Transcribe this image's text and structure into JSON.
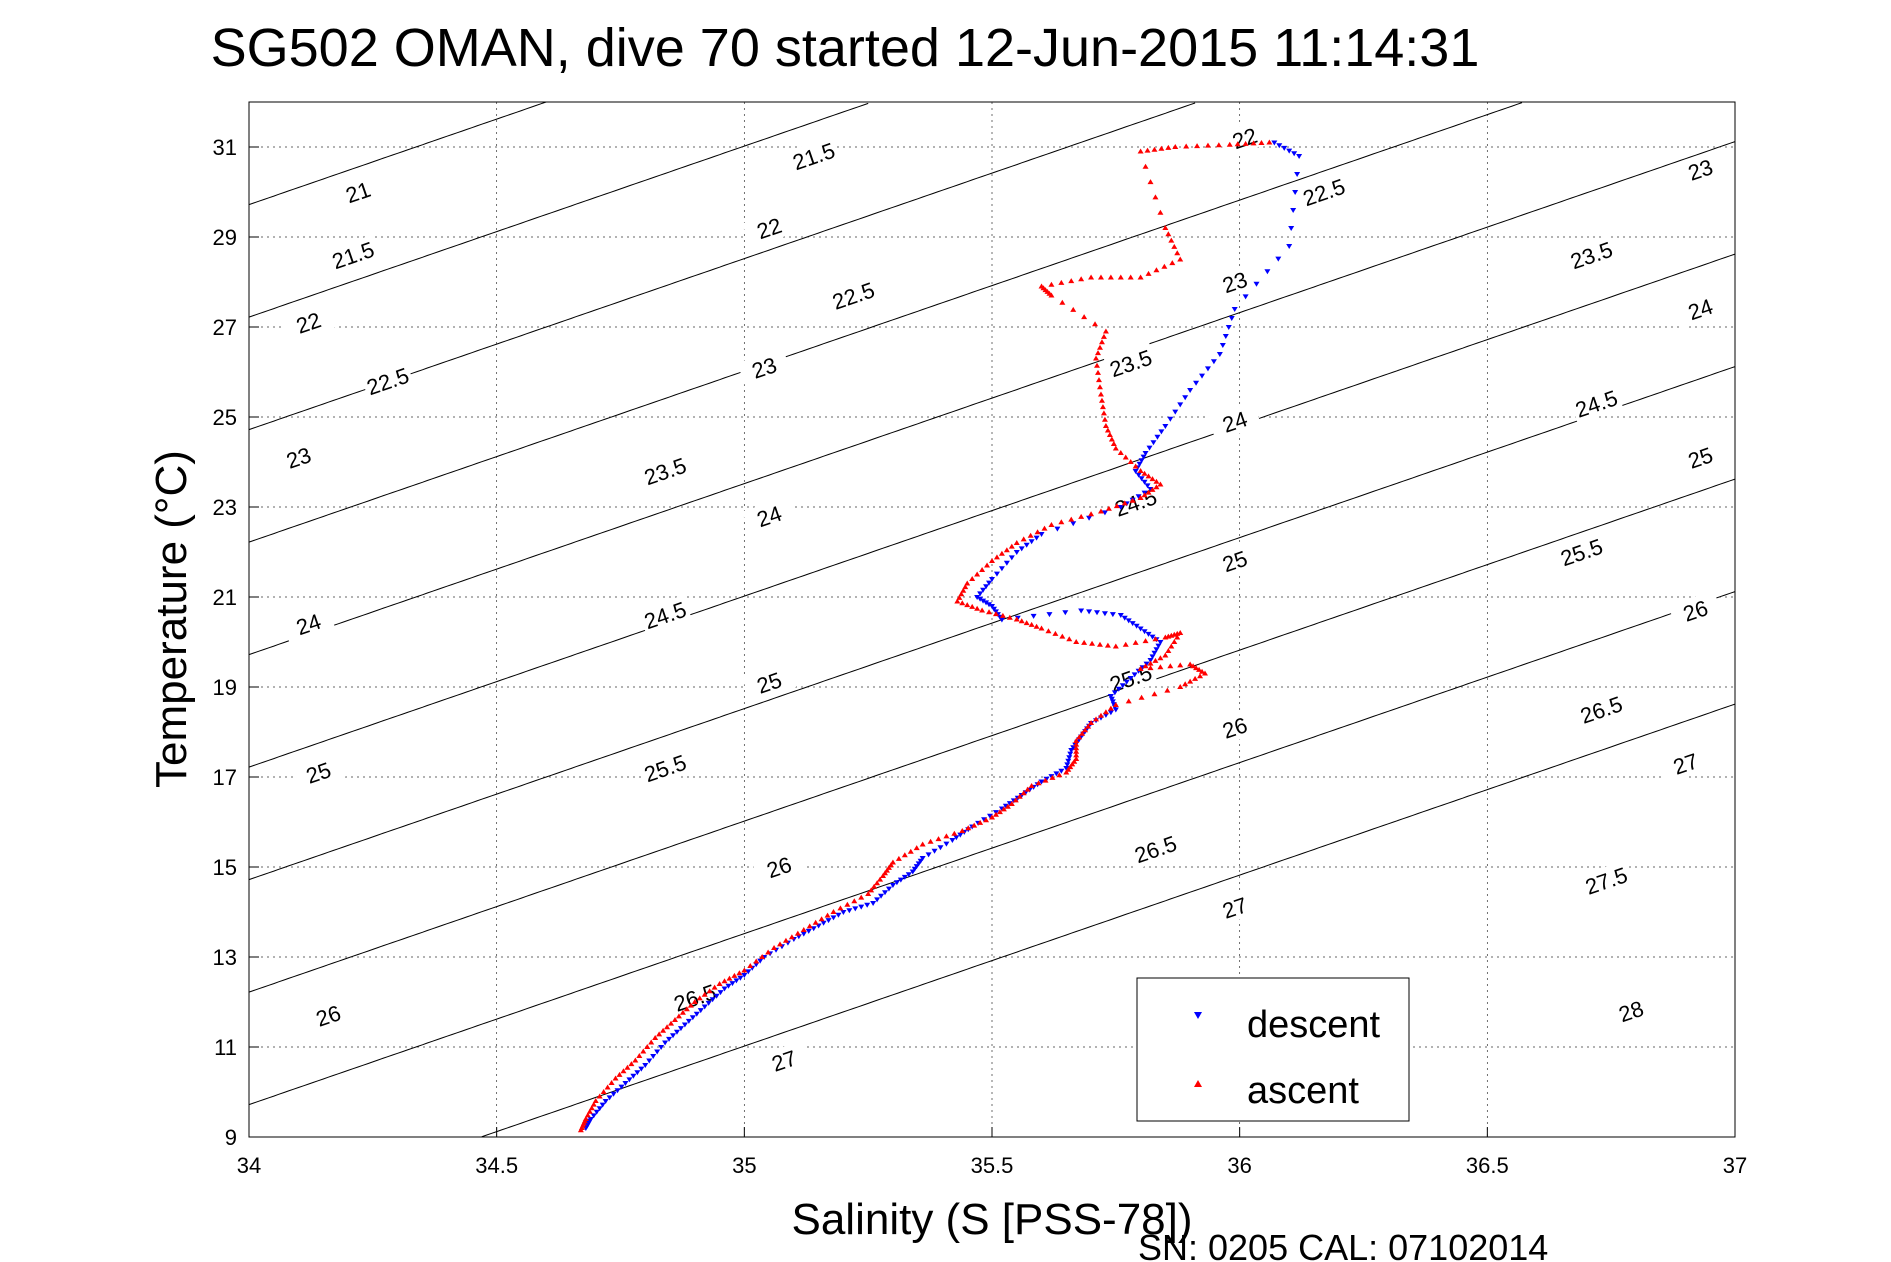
{
  "chart_data": {
    "type": "scatter",
    "title": "SG502 OMAN, dive 70 started 12-Jun-2015 11:14:31",
    "xlabel": "Salinity (S [PSS-78])",
    "ylabel": "Temperature (°C)",
    "xlim": [
      34,
      37
    ],
    "ylim": [
      9,
      32
    ],
    "xticks": [
      34,
      34.5,
      35,
      35.5,
      36,
      36.5,
      37
    ],
    "yticks": [
      9,
      11,
      13,
      15,
      17,
      19,
      21,
      23,
      25,
      27,
      29,
      31
    ],
    "grid": true,
    "legend_position": "bottom-right",
    "footer": "SN: 0205  CAL: 07102014",
    "contours": {
      "kind": "sigma-theta isopycnals",
      "levels": [
        21,
        21.5,
        22,
        22.5,
        23,
        23.5,
        24,
        24.5,
        25,
        25.5,
        26,
        26.5,
        27,
        27.5,
        28
      ]
    },
    "contour_labels": [
      {
        "text": "21",
        "s": 34.22,
        "t": 30.0
      },
      {
        "text": "21.5",
        "s": 34.21,
        "t": 28.6
      },
      {
        "text": "22",
        "s": 34.12,
        "t": 27.1
      },
      {
        "text": "22.5",
        "s": 34.28,
        "t": 25.8
      },
      {
        "text": "23",
        "s": 34.1,
        "t": 24.1
      },
      {
        "text": "23.5",
        "s": 34.84,
        "t": 23.8
      },
      {
        "text": "24",
        "s": 34.12,
        "t": 20.4
      },
      {
        "text": "24.5",
        "s": 34.84,
        "t": 20.6
      },
      {
        "text": "25",
        "s": 34.14,
        "t": 17.1
      },
      {
        "text": "25.5",
        "s": 34.84,
        "t": 17.2
      },
      {
        "text": "26",
        "s": 34.16,
        "t": 11.7
      },
      {
        "text": "26.5",
        "s": 34.9,
        "t": 12.1
      },
      {
        "text": "21.5",
        "s": 35.14,
        "t": 30.8
      },
      {
        "text": "22",
        "s": 35.05,
        "t": 29.2
      },
      {
        "text": "22.5",
        "s": 35.22,
        "t": 27.7
      },
      {
        "text": "23",
        "s": 35.04,
        "t": 26.1
      },
      {
        "text": "24",
        "s": 35.05,
        "t": 22.8
      },
      {
        "text": "25",
        "s": 35.05,
        "t": 19.1
      },
      {
        "text": "26",
        "s": 35.07,
        "t": 15.0
      },
      {
        "text": "27",
        "s": 35.08,
        "t": 10.7
      },
      {
        "text": "22",
        "s": 36.01,
        "t": 31.2
      },
      {
        "text": "22.5",
        "s": 36.17,
        "t": 30.0
      },
      {
        "text": "23",
        "s": 35.99,
        "t": 28.0
      },
      {
        "text": "23.5",
        "s": 35.78,
        "t": 26.2
      },
      {
        "text": "24",
        "s": 35.99,
        "t": 24.9
      },
      {
        "text": "24.5",
        "s": 35.79,
        "t": 23.1
      },
      {
        "text": "25",
        "s": 35.99,
        "t": 21.8
      },
      {
        "text": "25.5",
        "s": 35.78,
        "t": 19.2
      },
      {
        "text": "26",
        "s": 35.99,
        "t": 18.1
      },
      {
        "text": "26.5",
        "s": 35.83,
        "t": 15.4
      },
      {
        "text": "27",
        "s": 35.99,
        "t": 14.1
      },
      {
        "text": "23",
        "s": 36.93,
        "t": 30.5
      },
      {
        "text": "23.5",
        "s": 36.71,
        "t": 28.6
      },
      {
        "text": "24",
        "s": 36.93,
        "t": 27.4
      },
      {
        "text": "24.5",
        "s": 36.72,
        "t": 25.3
      },
      {
        "text": "25",
        "s": 36.93,
        "t": 24.1
      },
      {
        "text": "25.5",
        "s": 36.69,
        "t": 22.0
      },
      {
        "text": "26",
        "s": 36.92,
        "t": 20.7
      },
      {
        "text": "26.5",
        "s": 36.73,
        "t": 18.5
      },
      {
        "text": "27",
        "s": 36.9,
        "t": 17.3
      },
      {
        "text": "27.5",
        "s": 36.74,
        "t": 14.7
      },
      {
        "text": "28",
        "s": 36.79,
        "t": 11.8
      }
    ],
    "series": [
      {
        "name": "descent",
        "color": "#0000ff",
        "marker": "triangle-down",
        "points": [
          [
            36.07,
            31.1
          ],
          [
            36.12,
            30.8
          ],
          [
            36.1,
            28.8
          ],
          [
            35.99,
            27.4
          ],
          [
            35.96,
            26.4
          ],
          [
            35.9,
            25.6
          ],
          [
            35.85,
            24.8
          ],
          [
            35.81,
            24.2
          ],
          [
            35.79,
            23.8
          ],
          [
            35.82,
            23.4
          ],
          [
            35.76,
            23.0
          ],
          [
            35.6,
            22.4
          ],
          [
            35.55,
            22.0
          ],
          [
            35.5,
            21.4
          ],
          [
            35.47,
            21.0
          ],
          [
            35.5,
            20.8
          ],
          [
            35.52,
            20.5
          ],
          [
            35.68,
            20.7
          ],
          [
            35.76,
            20.6
          ],
          [
            35.8,
            20.3
          ],
          [
            35.84,
            20.0
          ],
          [
            35.82,
            19.6
          ],
          [
            35.78,
            19.2
          ],
          [
            35.74,
            18.8
          ],
          [
            35.75,
            18.5
          ],
          [
            35.7,
            18.2
          ],
          [
            35.68,
            17.9
          ],
          [
            35.66,
            17.6
          ],
          [
            35.65,
            17.2
          ],
          [
            35.6,
            16.9
          ],
          [
            35.56,
            16.6
          ],
          [
            35.52,
            16.3
          ],
          [
            35.46,
            15.9
          ],
          [
            35.42,
            15.6
          ],
          [
            35.36,
            15.2
          ],
          [
            35.34,
            14.9
          ],
          [
            35.3,
            14.6
          ],
          [
            35.26,
            14.2
          ],
          [
            35.2,
            14.0
          ],
          [
            35.15,
            13.7
          ],
          [
            35.1,
            13.4
          ],
          [
            35.04,
            13.0
          ],
          [
            35.0,
            12.6
          ],
          [
            34.96,
            12.3
          ],
          [
            34.92,
            11.9
          ],
          [
            34.88,
            11.5
          ],
          [
            34.84,
            11.1
          ],
          [
            34.8,
            10.6
          ],
          [
            34.76,
            10.2
          ],
          [
            34.72,
            9.8
          ],
          [
            34.69,
            9.4
          ],
          [
            34.68,
            9.2
          ]
        ]
      },
      {
        "name": "ascent",
        "color": "#ff0000",
        "marker": "triangle-up",
        "points": [
          [
            36.06,
            31.1
          ],
          [
            35.98,
            31.05
          ],
          [
            35.87,
            31.0
          ],
          [
            35.8,
            30.9
          ],
          [
            35.85,
            29.2
          ],
          [
            35.88,
            28.5
          ],
          [
            35.8,
            28.1
          ],
          [
            35.7,
            28.1
          ],
          [
            35.6,
            27.9
          ],
          [
            35.62,
            27.7
          ],
          [
            35.73,
            26.9
          ],
          [
            35.71,
            26.3
          ],
          [
            35.72,
            25.5
          ],
          [
            35.73,
            24.8
          ],
          [
            35.75,
            24.3
          ],
          [
            35.8,
            23.8
          ],
          [
            35.84,
            23.5
          ],
          [
            35.8,
            23.2
          ],
          [
            35.72,
            22.9
          ],
          [
            35.62,
            22.6
          ],
          [
            35.55,
            22.2
          ],
          [
            35.5,
            21.8
          ],
          [
            35.45,
            21.3
          ],
          [
            35.43,
            20.9
          ],
          [
            35.48,
            20.7
          ],
          [
            35.55,
            20.5
          ],
          [
            35.6,
            20.3
          ],
          [
            35.67,
            20.0
          ],
          [
            35.75,
            19.9
          ],
          [
            35.85,
            20.1
          ],
          [
            35.88,
            20.2
          ],
          [
            35.85,
            19.7
          ],
          [
            35.8,
            19.4
          ],
          [
            35.9,
            19.5
          ],
          [
            35.93,
            19.3
          ],
          [
            35.88,
            19.0
          ],
          [
            35.75,
            18.6
          ],
          [
            35.7,
            18.2
          ],
          [
            35.67,
            17.8
          ],
          [
            35.67,
            17.4
          ],
          [
            35.65,
            17.1
          ],
          [
            35.58,
            16.8
          ],
          [
            35.54,
            16.4
          ],
          [
            35.5,
            16.1
          ],
          [
            35.44,
            15.8
          ],
          [
            35.36,
            15.5
          ],
          [
            35.3,
            15.1
          ],
          [
            35.28,
            14.8
          ],
          [
            35.25,
            14.4
          ],
          [
            35.18,
            14.0
          ],
          [
            35.12,
            13.6
          ],
          [
            35.06,
            13.2
          ],
          [
            35.0,
            12.7
          ],
          [
            34.95,
            12.4
          ],
          [
            34.9,
            12.0
          ],
          [
            34.86,
            11.6
          ],
          [
            34.82,
            11.2
          ],
          [
            34.78,
            10.7
          ],
          [
            34.74,
            10.3
          ],
          [
            34.7,
            9.8
          ],
          [
            34.68,
            9.4
          ],
          [
            34.67,
            9.15
          ]
        ]
      }
    ]
  }
}
